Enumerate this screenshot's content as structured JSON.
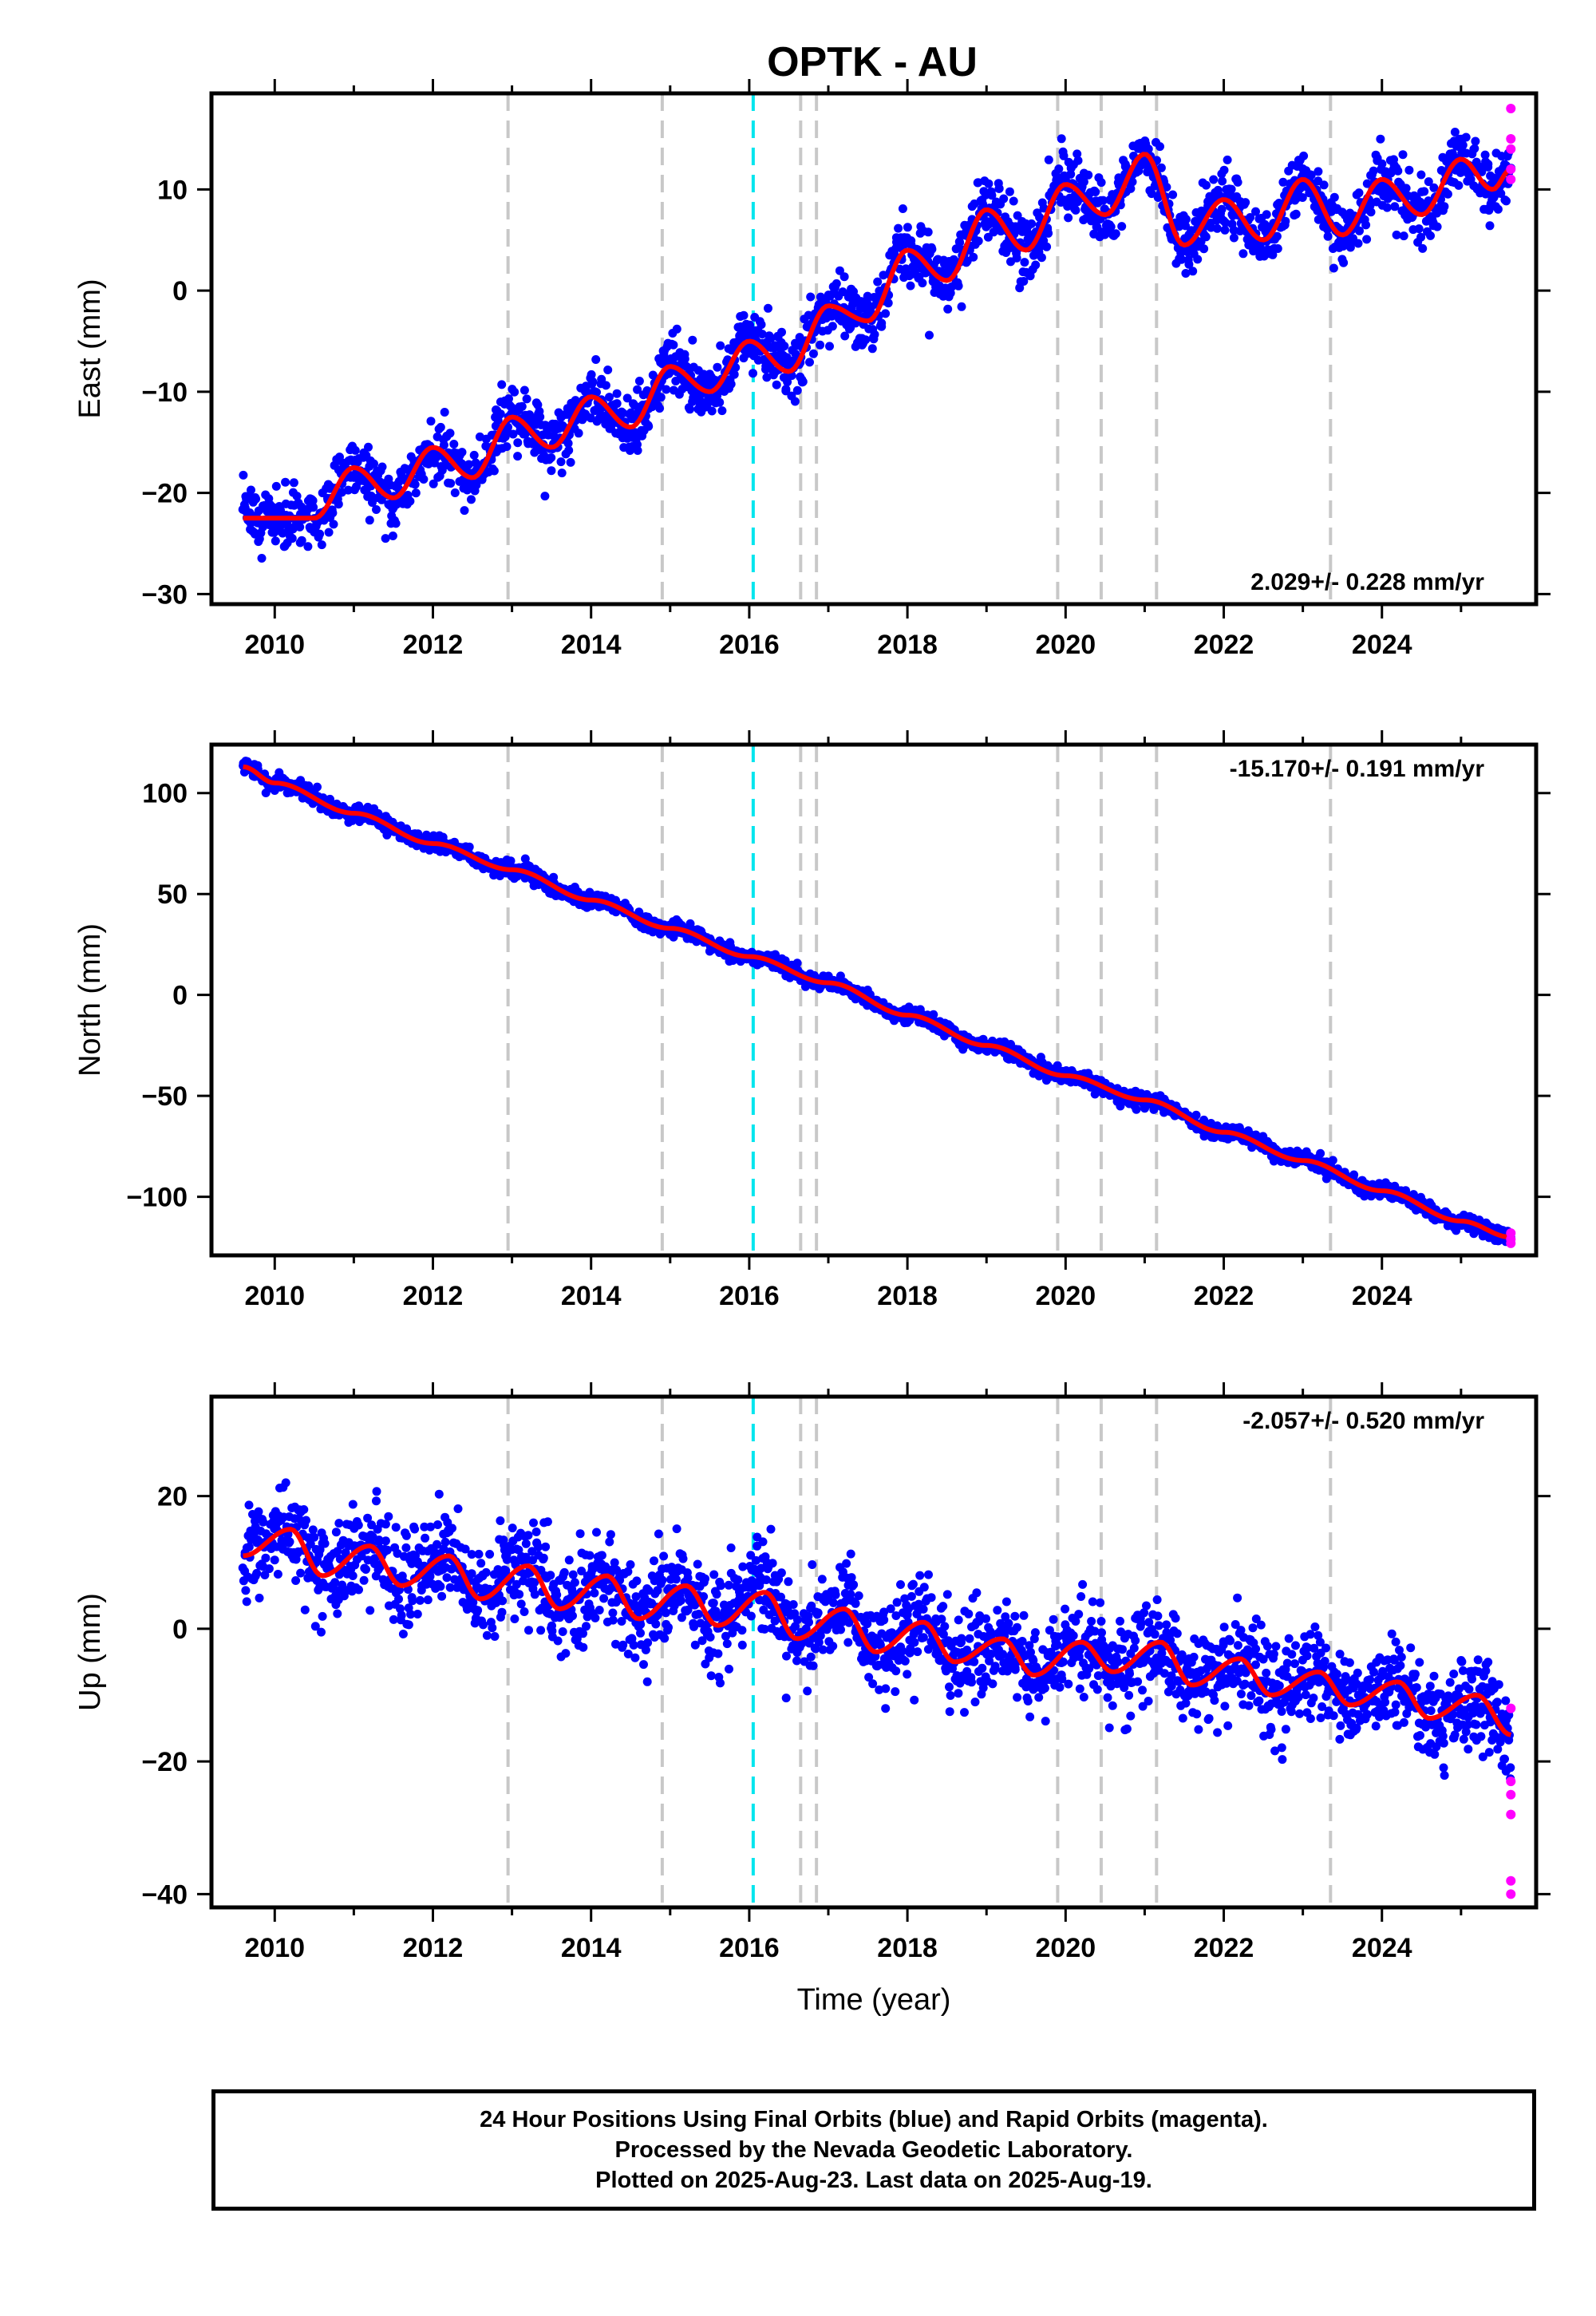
{
  "title": "OPTK - AU",
  "colors": {
    "final_orbits": "#0000ff",
    "rapid_orbits": "#ff00ff",
    "model": "#ff0000",
    "equipment_change": "#c8c8c8",
    "earthquake": "#00e5ee"
  },
  "footer": {
    "line1": "24 Hour Positions Using Final Orbits (blue) and Rapid Orbits (magenta).",
    "line2": "Processed by the Nevada Geodetic Laboratory.",
    "line3": "Plotted on 2025-Aug-23. Last data on 2025-Aug-19."
  },
  "chart_data": [
    {
      "type": "scatter",
      "name": "east",
      "ylabel": "East (mm)",
      "xlabel": "",
      "rate_text": "2.029+/- 0.228 mm/yr",
      "rate_position": "bottom-right",
      "xlim": [
        2009.2,
        2025.95
      ],
      "ylim": [
        -31,
        19.5
      ],
      "x_ticks": [
        2010,
        2012,
        2014,
        2016,
        2018,
        2020,
        2022,
        2024
      ],
      "y_ticks": [
        -30,
        -20,
        -10,
        0,
        10
      ],
      "start_year": 2009.6,
      "end_year": 2025.63,
      "model_anchor_points": [
        [
          2009.6,
          -22.5
        ],
        [
          2010.5,
          -22.5
        ],
        [
          2011.0,
          -17.5
        ],
        [
          2011.5,
          -20.5
        ],
        [
          2012.0,
          -15.5
        ],
        [
          2012.5,
          -18.5
        ],
        [
          2013.0,
          -12.5
        ],
        [
          2013.5,
          -15.5
        ],
        [
          2014.0,
          -10.5
        ],
        [
          2014.5,
          -13.5
        ],
        [
          2015.0,
          -7.5
        ],
        [
          2015.5,
          -10.0
        ],
        [
          2016.0,
          -5.0
        ],
        [
          2016.5,
          -8.0
        ],
        [
          2017.0,
          -1.5
        ],
        [
          2017.5,
          -3.0
        ],
        [
          2018.0,
          4.0
        ],
        [
          2018.5,
          1.0
        ],
        [
          2019.0,
          8.0
        ],
        [
          2019.5,
          4.0
        ],
        [
          2020.0,
          10.5
        ],
        [
          2020.5,
          7.5
        ],
        [
          2021.0,
          13.5
        ],
        [
          2021.5,
          4.5
        ],
        [
          2022.0,
          9.0
        ],
        [
          2022.5,
          5.0
        ],
        [
          2023.0,
          11.0
        ],
        [
          2023.5,
          5.5
        ],
        [
          2024.0,
          11.0
        ],
        [
          2024.5,
          7.5
        ],
        [
          2025.0,
          13.0
        ],
        [
          2025.4,
          10.0
        ],
        [
          2025.63,
          12.0
        ]
      ],
      "scatter_noise_mm": 1.5,
      "rapid_points": [
        [
          2025.63,
          18.0
        ],
        [
          2025.63,
          15.0
        ],
        [
          2025.63,
          14.0
        ],
        [
          2025.63,
          12.0
        ],
        [
          2025.63,
          11.0
        ]
      ],
      "equipment_change_years": [
        2012.95,
        2014.9,
        2016.65,
        2016.85,
        2019.9,
        2020.45,
        2021.15,
        2023.35
      ],
      "earthquake_years": [
        2016.05
      ]
    },
    {
      "type": "scatter",
      "name": "north",
      "ylabel": "North (mm)",
      "xlabel": "",
      "rate_text": "-15.170+/- 0.191 mm/yr",
      "rate_position": "top-right",
      "xlim": [
        2009.2,
        2025.95
      ],
      "ylim": [
        -129,
        124
      ],
      "x_ticks": [
        2010,
        2012,
        2014,
        2016,
        2018,
        2020,
        2022,
        2024
      ],
      "y_ticks": [
        -100,
        -50,
        0,
        50,
        100
      ],
      "start_year": 2009.6,
      "end_year": 2025.63,
      "model_anchor_points": [
        [
          2009.6,
          113.0
        ],
        [
          2010.0,
          105.0
        ],
        [
          2011.0,
          90.0
        ],
        [
          2012.0,
          75.0
        ],
        [
          2013.0,
          62.0
        ],
        [
          2014.0,
          47.0
        ],
        [
          2015.0,
          33.0
        ],
        [
          2016.0,
          19.0
        ],
        [
          2017.0,
          6.0
        ],
        [
          2018.0,
          -10.0
        ],
        [
          2019.0,
          -25.0
        ],
        [
          2020.0,
          -40.0
        ],
        [
          2021.0,
          -52.0
        ],
        [
          2022.0,
          -68.0
        ],
        [
          2023.0,
          -82.0
        ],
        [
          2024.0,
          -97.0
        ],
        [
          2025.0,
          -112.0
        ],
        [
          2025.63,
          -120.0
        ]
      ],
      "scatter_noise_mm": 1.8,
      "rapid_points": [
        [
          2025.63,
          -118.0
        ],
        [
          2025.63,
          -121.0
        ],
        [
          2025.63,
          -123.0
        ]
      ],
      "equipment_change_years": [
        2012.95,
        2014.9,
        2016.65,
        2016.85,
        2019.9,
        2020.45,
        2021.15,
        2023.35
      ],
      "earthquake_years": [
        2016.05
      ]
    },
    {
      "type": "scatter",
      "name": "up",
      "ylabel": "Up (mm)",
      "xlabel": "Time (year)",
      "rate_text": "-2.057+/- 0.520 mm/yr",
      "rate_position": "top-right",
      "xlim": [
        2009.2,
        2025.95
      ],
      "ylim": [
        -42,
        35
      ],
      "x_ticks": [
        2010,
        2012,
        2014,
        2016,
        2018,
        2020,
        2022,
        2024
      ],
      "y_ticks": [
        -40,
        -20,
        0,
        20
      ],
      "start_year": 2009.6,
      "end_year": 2025.63,
      "model_anchor_points": [
        [
          2009.6,
          11.0
        ],
        [
          2010.2,
          15.0
        ],
        [
          2010.6,
          8.0
        ],
        [
          2011.2,
          12.5
        ],
        [
          2011.6,
          6.5
        ],
        [
          2012.2,
          11.0
        ],
        [
          2012.6,
          4.5
        ],
        [
          2013.2,
          9.5
        ],
        [
          2013.6,
          3.0
        ],
        [
          2014.2,
          8.0
        ],
        [
          2014.6,
          1.5
        ],
        [
          2015.2,
          6.5
        ],
        [
          2015.6,
          0.5
        ],
        [
          2016.2,
          5.5
        ],
        [
          2016.6,
          -1.5
        ],
        [
          2017.2,
          3.0
        ],
        [
          2017.6,
          -3.5
        ],
        [
          2018.2,
          1.0
        ],
        [
          2018.6,
          -5.0
        ],
        [
          2019.2,
          -1.5
        ],
        [
          2019.6,
          -7.0
        ],
        [
          2020.2,
          -2.0
        ],
        [
          2020.6,
          -6.5
        ],
        [
          2021.2,
          -2.0
        ],
        [
          2021.6,
          -8.5
        ],
        [
          2022.2,
          -4.5
        ],
        [
          2022.6,
          -10.0
        ],
        [
          2023.2,
          -6.5
        ],
        [
          2023.6,
          -11.5
        ],
        [
          2024.2,
          -8.0
        ],
        [
          2024.6,
          -13.5
        ],
        [
          2025.2,
          -10.0
        ],
        [
          2025.63,
          -16.0
        ]
      ],
      "scatter_noise_mm": 3.5,
      "rapid_points": [
        [
          2025.63,
          -12.0
        ],
        [
          2025.63,
          -23.0
        ],
        [
          2025.63,
          -25.0
        ],
        [
          2025.63,
          -28.0
        ],
        [
          2025.63,
          -38.0
        ],
        [
          2025.63,
          -40.0
        ]
      ],
      "equipment_change_years": [
        2012.95,
        2014.9,
        2016.65,
        2016.85,
        2019.9,
        2020.45,
        2021.15,
        2023.35
      ],
      "earthquake_years": [
        2016.05
      ]
    }
  ]
}
